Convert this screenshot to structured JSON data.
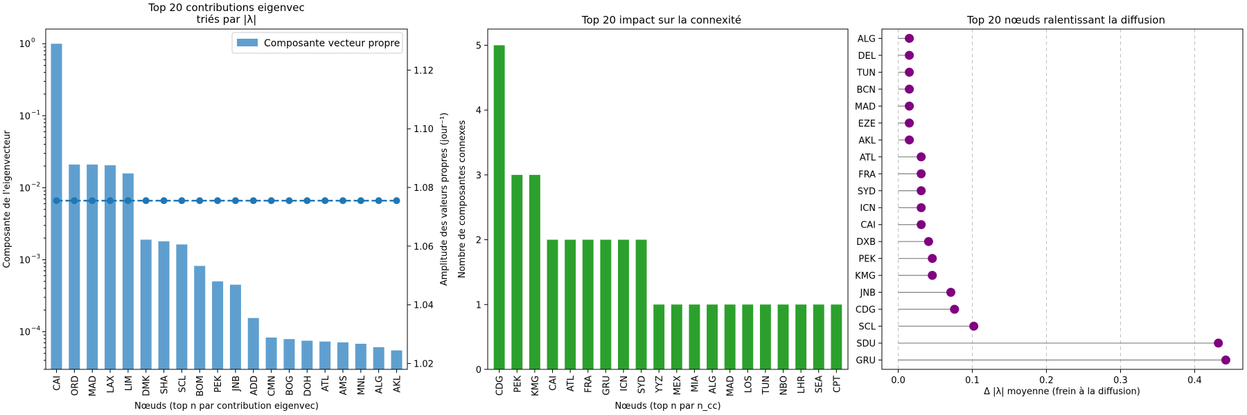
{
  "chart_data": [
    {
      "type": "bar",
      "title_lines": [
        "Top 20 contributions eigenvec",
        "triés par |λ|"
      ],
      "xlabel": "Nœuds (top n par contribution eigenvec)",
      "ylabel": "Composante de l'eigenvecteur",
      "y_scale": "log",
      "ylim": [
        3e-05,
        1.6
      ],
      "y_ticks": [
        {
          "value": 0.0001,
          "base": "10",
          "exp": "−4"
        },
        {
          "value": 0.001,
          "base": "10",
          "exp": "−3"
        },
        {
          "value": 0.01,
          "base": "10",
          "exp": "−2"
        },
        {
          "value": 0.1,
          "base": "10",
          "exp": "−1"
        },
        {
          "value": 1,
          "base": "10",
          "exp": "0"
        }
      ],
      "categories": [
        "CAI",
        "ORD",
        "MAD",
        "LAX",
        "LIM",
        "DMK",
        "SHA",
        "SCL",
        "BOM",
        "PEK",
        "JNB",
        "ADD",
        "CMN",
        "BOG",
        "DOH",
        "ATL",
        "AMS",
        "MNL",
        "ALG",
        "AKL"
      ],
      "series": [
        {
          "name": "Composante vecteur propre",
          "type": "bar",
          "values": [
            1.0,
            0.021,
            0.021,
            0.0205,
            0.0158,
            0.0019,
            0.0018,
            0.00163,
            0.00082,
            0.0005,
            0.00045,
            0.000155,
            8.3e-05,
            7.9e-05,
            7.5e-05,
            7.3e-05,
            7.1e-05,
            6.8e-05,
            6.1e-05,
            5.5e-05
          ]
        },
        {
          "type": "line",
          "axis": "right",
          "style": "dashed-markers",
          "values": [
            1.0755,
            1.0755,
            1.0755,
            1.0755,
            1.0755,
            1.0755,
            1.0755,
            1.0755,
            1.0755,
            1.0755,
            1.0755,
            1.0755,
            1.0755,
            1.0755,
            1.0755,
            1.0755,
            1.0755,
            1.0755,
            1.0755,
            1.0755
          ]
        }
      ],
      "y2label": "Amplitude des valeurs propres (jour⁻¹)",
      "y2lim": [
        1.018,
        1.134
      ],
      "y2_ticks": [
        "1.02",
        "1.04",
        "1.06",
        "1.08",
        "1.10",
        "1.12"
      ],
      "legend": {
        "label": "Composante vecteur propre",
        "position": "top-right"
      },
      "colors": {
        "bar": "#5f9fcf",
        "line": "#1f77b4"
      }
    },
    {
      "type": "bar",
      "title": "Top 20 impact sur la connexité",
      "xlabel": "Nœuds (top n par n_cc)",
      "ylabel": "Nombre de composantes connexes",
      "ylim": [
        0,
        5.25
      ],
      "y_ticks": [
        "0",
        "1",
        "2",
        "3",
        "4",
        "5"
      ],
      "categories": [
        "CDG",
        "PEK",
        "KMG",
        "CAI",
        "ATL",
        "FRA",
        "GRU",
        "ICN",
        "SYD",
        "YYZ",
        "MEX",
        "MIA",
        "ALG",
        "MAD",
        "LOS",
        "TUN",
        "NBO",
        "LHR",
        "SEA",
        "CPT"
      ],
      "values": [
        5,
        3,
        3,
        2,
        2,
        2,
        2,
        2,
        2,
        1,
        1,
        1,
        1,
        1,
        1,
        1,
        1,
        1,
        1,
        1
      ],
      "colors": {
        "bar": "#2ca02c"
      }
    },
    {
      "type": "lollipop",
      "title": "Top 20 nœuds ralentissant la diffusion",
      "xlabel": "Δ |λ| moyenne (frein à la diffusion)",
      "xlim": [
        -0.022,
        0.465
      ],
      "x_ticks": [
        "0.0",
        "0.1",
        "0.2",
        "0.3",
        "0.4"
      ],
      "grid": "x-dashed",
      "categories": [
        "ALG",
        "DEL",
        "TUN",
        "BCN",
        "MAD",
        "EZE",
        "AKL",
        "ATL",
        "FRA",
        "SYD",
        "ICN",
        "CAI",
        "DXB",
        "PEK",
        "KMG",
        "JNB",
        "CDG",
        "SCL",
        "SDU",
        "GRU"
      ],
      "values": [
        0.015,
        0.015,
        0.015,
        0.015,
        0.015,
        0.015,
        0.015,
        0.031,
        0.031,
        0.031,
        0.031,
        0.031,
        0.041,
        0.046,
        0.046,
        0.071,
        0.076,
        0.102,
        0.432,
        0.442
      ],
      "colors": {
        "marker": "#800080",
        "stem": "#808080"
      }
    }
  ]
}
